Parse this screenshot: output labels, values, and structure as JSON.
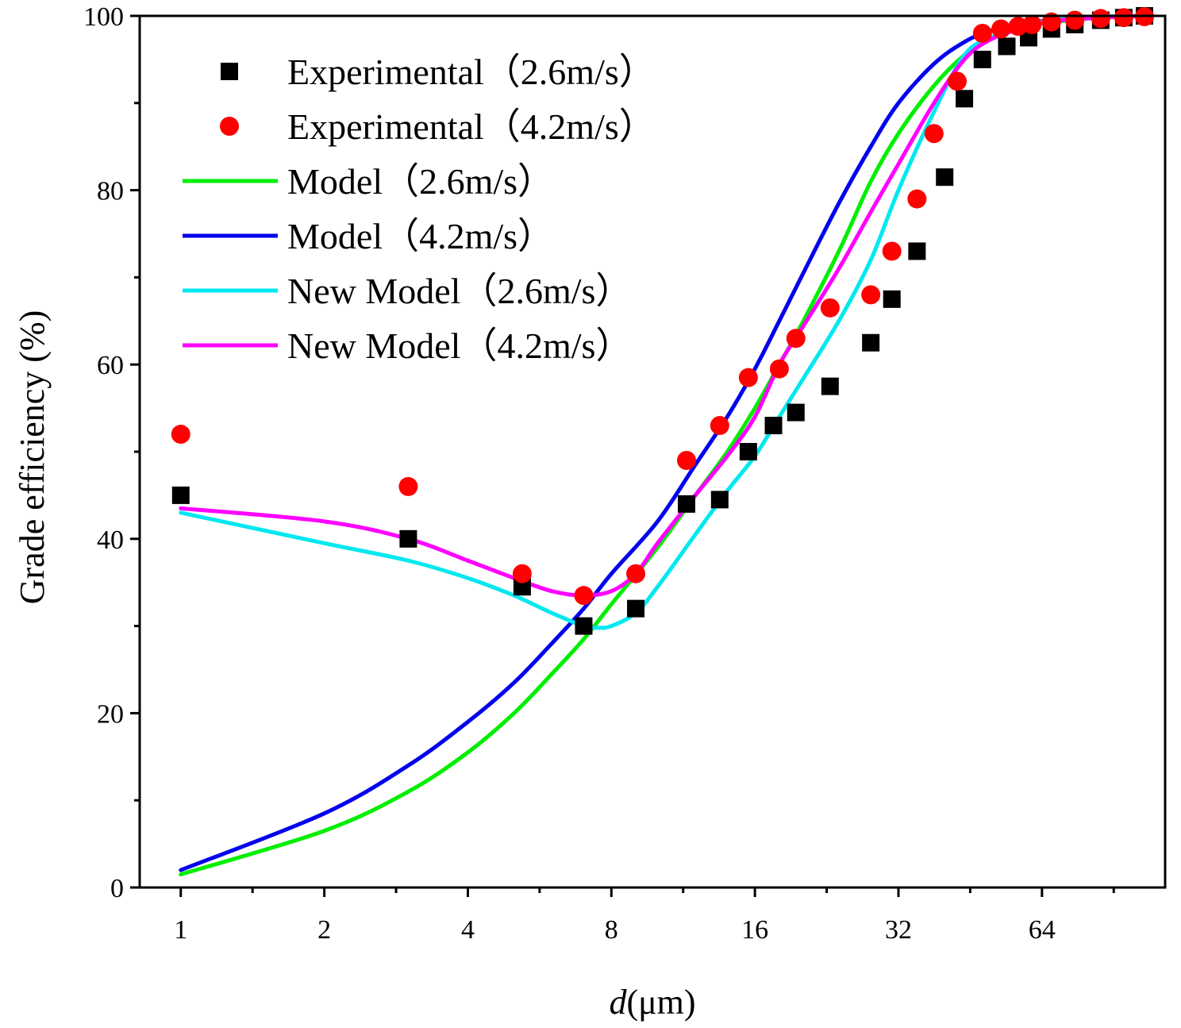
{
  "chart_data": {
    "type": "line",
    "title": "",
    "xlabel_italic": "d",
    "xlabel_rest": "(μm)",
    "ylabel": "Grade efficiency (%)",
    "x_scale": "log2",
    "xlim": [
      0.82,
      116
    ],
    "ylim": [
      0,
      100
    ],
    "x_ticks": [
      1,
      2,
      4,
      8,
      16,
      32,
      64
    ],
    "x_tick_labels": [
      "1",
      "2",
      "4",
      "8",
      "16",
      "32",
      "64"
    ],
    "y_ticks": [
      0,
      20,
      40,
      60,
      80,
      100
    ],
    "y_tick_labels": [
      "0",
      "20",
      "40",
      "60",
      "80",
      "100"
    ],
    "legend_position": "top-left",
    "series": [
      {
        "name": "Experimental（2.6m/s）",
        "kind": "scatter",
        "marker": "square",
        "color": "#000000",
        "x": [
          1.0,
          3.0,
          5.2,
          7.0,
          9.0,
          11.5,
          13.5,
          15.5,
          17.5,
          19.5,
          23.0,
          28.0,
          31.0,
          35.0,
          40.0,
          44.0,
          48.0,
          54.0,
          60.0,
          67.0,
          75.0,
          85.0,
          95.0,
          105.0
        ],
        "y": [
          45.0,
          40.0,
          34.5,
          30.0,
          32.0,
          44.0,
          44.5,
          50.0,
          53.0,
          54.5,
          57.5,
          62.5,
          67.5,
          73.0,
          81.5,
          90.5,
          95.0,
          96.5,
          97.5,
          98.5,
          99.0,
          99.5,
          99.8,
          100.0
        ]
      },
      {
        "name": "Experimental（4.2m/s）",
        "kind": "scatter",
        "marker": "circle",
        "color": "#ff0000",
        "x": [
          1.0,
          3.0,
          5.2,
          7.0,
          9.0,
          11.5,
          13.5,
          15.5,
          18.0,
          19.5,
          23.0,
          28.0,
          31.0,
          35.0,
          38.0,
          42.5,
          48.0,
          52.5,
          57.0,
          61.0,
          67.0,
          75.0,
          85.0,
          95.0,
          105.0
        ],
        "y": [
          52.0,
          46.0,
          36.0,
          33.5,
          36.0,
          49.0,
          53.0,
          58.5,
          59.5,
          63.0,
          66.5,
          68.0,
          73.0,
          79.0,
          86.5,
          92.5,
          98.0,
          98.5,
          98.8,
          99.0,
          99.3,
          99.5,
          99.7,
          99.8,
          99.9
        ]
      },
      {
        "name": "Model（2.6m/s）",
        "kind": "line",
        "color": "#00ee00",
        "x": [
          1.0,
          2.0,
          3.0,
          4.0,
          5.0,
          6.0,
          7.0,
          8.0,
          10.0,
          12.0,
          14.0,
          16.0,
          18.0,
          20.0,
          24.0,
          28.0,
          32.0,
          38.0,
          44.0,
          50.0,
          60.0,
          70.0,
          85.0,
          105.0
        ],
        "y": [
          1.5,
          6.5,
          11.0,
          15.5,
          20.0,
          24.5,
          28.5,
          32.5,
          39.0,
          45.0,
          50.0,
          55.0,
          60.0,
          64.5,
          73.0,
          81.0,
          86.5,
          92.0,
          95.5,
          97.5,
          98.8,
          99.4,
          99.8,
          100.0
        ]
      },
      {
        "name": "Model（4.2m/s）",
        "kind": "line",
        "color": "#0000ee",
        "x": [
          1.0,
          2.0,
          3.0,
          4.0,
          5.0,
          6.0,
          7.0,
          8.0,
          10.0,
          12.0,
          14.0,
          16.0,
          18.0,
          20.0,
          24.0,
          28.0,
          32.0,
          38.0,
          44.0,
          50.0,
          60.0,
          70.0,
          85.0,
          105.0
        ],
        "y": [
          2.0,
          8.5,
          14.0,
          19.0,
          23.5,
          28.0,
          32.0,
          36.0,
          42.0,
          48.5,
          54.0,
          59.5,
          65.0,
          70.0,
          78.5,
          85.0,
          90.0,
          94.5,
          97.0,
          98.3,
          99.2,
          99.6,
          99.9,
          100.0
        ]
      },
      {
        "name": "New Model（2.6m/s）",
        "kind": "line",
        "color": "#00e8f0",
        "x": [
          1.0,
          2.0,
          3.0,
          4.0,
          5.0,
          6.0,
          7.0,
          7.5,
          8.0,
          9.0,
          10.0,
          12.0,
          14.0,
          16.0,
          18.0,
          20.0,
          24.0,
          28.0,
          32.0,
          38.0,
          44.0,
          50.0,
          60.0,
          70.0,
          85.0,
          105.0
        ],
        "y": [
          43.0,
          39.5,
          37.5,
          35.5,
          33.5,
          31.5,
          30.0,
          29.8,
          30.0,
          31.5,
          34.5,
          40.5,
          45.5,
          49.5,
          54.0,
          58.0,
          65.0,
          72.0,
          80.0,
          89.0,
          95.5,
          97.5,
          99.0,
          99.6,
          99.9,
          100.0
        ]
      },
      {
        "name": "New Model（4.2m/s）",
        "kind": "line",
        "color": "#ff00ff",
        "x": [
          1.0,
          2.0,
          3.0,
          4.0,
          5.0,
          6.0,
          7.0,
          8.0,
          9.0,
          10.0,
          12.0,
          14.0,
          16.0,
          18.0,
          20.0,
          24.0,
          28.0,
          32.0,
          38.0,
          44.0,
          50.0,
          60.0,
          70.0,
          85.0,
          105.0
        ],
        "y": [
          43.5,
          42.0,
          40.0,
          37.5,
          35.5,
          34.0,
          33.5,
          34.0,
          36.0,
          39.5,
          45.0,
          49.5,
          54.0,
          60.0,
          64.0,
          71.0,
          77.5,
          83.0,
          90.0,
          95.0,
          97.3,
          98.8,
          99.5,
          99.8,
          100.0
        ]
      }
    ]
  }
}
